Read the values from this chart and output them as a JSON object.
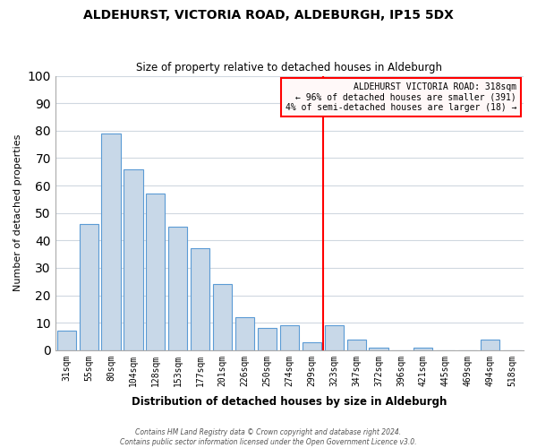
{
  "title": "ALDEHURST, VICTORIA ROAD, ALDEBURGH, IP15 5DX",
  "subtitle": "Size of property relative to detached houses in Aldeburgh",
  "xlabel": "Distribution of detached houses by size in Aldeburgh",
  "ylabel": "Number of detached properties",
  "categories": [
    "31sqm",
    "55sqm",
    "80sqm",
    "104sqm",
    "128sqm",
    "153sqm",
    "177sqm",
    "201sqm",
    "226sqm",
    "250sqm",
    "274sqm",
    "299sqm",
    "323sqm",
    "347sqm",
    "372sqm",
    "396sqm",
    "421sqm",
    "445sqm",
    "469sqm",
    "494sqm",
    "518sqm"
  ],
  "values": [
    7,
    46,
    79,
    66,
    57,
    45,
    37,
    24,
    12,
    8,
    9,
    3,
    9,
    4,
    1,
    0,
    1,
    0,
    0,
    4,
    0
  ],
  "bar_color": "#c8d8e8",
  "bar_edge_color": "#5b9bd5",
  "grid_color": "#d0d8e0",
  "vline_x": 11.5,
  "vline_color": "red",
  "annotation_title": "ALDEHURST VICTORIA ROAD: 318sqm",
  "annotation_line1": "← 96% of detached houses are smaller (391)",
  "annotation_line2": "4% of semi-detached houses are larger (18) →",
  "annotation_box_facecolor": "#fff8f8",
  "annotation_box_edgecolor": "red",
  "ylim": [
    0,
    100
  ],
  "yticks": [
    0,
    10,
    20,
    30,
    40,
    50,
    60,
    70,
    80,
    90,
    100
  ],
  "footer1": "Contains HM Land Registry data © Crown copyright and database right 2024.",
  "footer2": "Contains public sector information licensed under the Open Government Licence v3.0."
}
